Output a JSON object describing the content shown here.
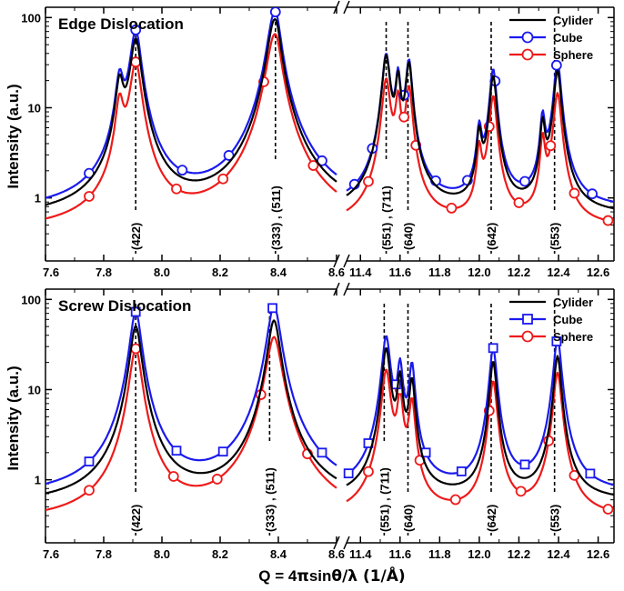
{
  "figure": {
    "ylabel": "Intensity (a.u.)",
    "xlabel_prefix": "Q = 4",
    "xlabel_pi": "π",
    "xlabel_mid": "sin",
    "xlabel_theta": "θ",
    "xlabel_suffix": "/λ (1/Å)"
  },
  "colors": {
    "Cylider": "#000000",
    "Cube": "#1a1aee",
    "Sphere": "#ee1a1a"
  },
  "chart_data": [
    {
      "type": "line",
      "title": "Edge Dislocation",
      "yscale": "log",
      "ylim": [
        0.2,
        130
      ],
      "yticks": [
        1,
        10,
        100
      ],
      "ytick_labels": [
        "1",
        "10",
        "100"
      ],
      "x_segments": [
        {
          "xlim": [
            7.6,
            8.6
          ],
          "ticks": [
            7.6,
            7.8,
            8.0,
            8.2,
            8.4,
            8.6
          ],
          "tick_labels": [
            "7.6",
            "7.8",
            "8.0",
            "8.2",
            "8.4",
            "8.6"
          ]
        },
        {
          "xlim": [
            11.33,
            12.68
          ],
          "ticks": [
            11.4,
            11.6,
            11.8,
            12.0,
            12.2,
            12.4,
            12.6
          ],
          "tick_labels": [
            "11.4",
            "11.6",
            "11.8",
            "12.0",
            "12.2",
            "12.4",
            "12.6"
          ]
        }
      ],
      "peak_labels": [
        {
          "x": 7.91,
          "label": "(422)"
        },
        {
          "x": 8.39,
          "label": "(333) , (511)"
        },
        {
          "x": 11.53,
          "label": "(551) , (711)"
        },
        {
          "x": 11.64,
          "label": "(640)"
        },
        {
          "x": 12.06,
          "label": "(642)"
        },
        {
          "x": 12.38,
          "label": "(553)"
        }
      ],
      "legend": {
        "position": "top-right",
        "entries": [
          "Cylider",
          "Cube",
          "Sphere"
        ]
      },
      "baseline": [
        0.55,
        0.65,
        0.4
      ],
      "series": [
        {
          "name": "Cylider",
          "marker": "none",
          "peaks": [
            [
              7.855,
              0.18,
              0.013
            ],
            [
              7.91,
              0.57,
              0.017
            ],
            [
              8.385,
              0.82,
              0.022
            ],
            [
              8.395,
              0.2,
              0.012
            ],
            [
              11.53,
              0.37,
              0.018
            ],
            [
              11.59,
              0.2,
              0.012
            ],
            [
              11.645,
              0.3,
              0.015
            ],
            [
              12.0,
              0.045,
              0.012
            ],
            [
              12.07,
              0.22,
              0.016
            ],
            [
              12.32,
              0.06,
              0.012
            ],
            [
              12.395,
              0.25,
              0.017
            ]
          ]
        },
        {
          "name": "Cube",
          "marker": "circle",
          "marker_x": [
            7.75,
            7.91,
            8.07,
            8.23,
            8.39,
            8.55,
            11.37,
            11.46,
            11.62,
            11.78,
            11.94,
            12.08,
            12.23,
            12.39,
            12.57
          ],
          "peaks": [
            [
              7.855,
              0.2,
              0.013
            ],
            [
              7.91,
              0.71,
              0.017
            ],
            [
              8.385,
              0.99,
              0.022
            ],
            [
              8.395,
              0.24,
              0.012
            ],
            [
              11.53,
              0.38,
              0.018
            ],
            [
              11.59,
              0.22,
              0.012
            ],
            [
              11.645,
              0.32,
              0.015
            ],
            [
              12.0,
              0.05,
              0.012
            ],
            [
              12.07,
              0.26,
              0.016
            ],
            [
              12.32,
              0.07,
              0.012
            ],
            [
              12.395,
              0.31,
              0.017
            ]
          ]
        },
        {
          "name": "Sphere",
          "marker": "circle",
          "marker_x": [
            7.75,
            7.91,
            8.05,
            8.21,
            8.35,
            8.52,
            11.44,
            11.62,
            11.68,
            11.86,
            12.05,
            12.2,
            12.36,
            12.48,
            12.65
          ],
          "peaks": [
            [
              7.855,
              0.11,
              0.013
            ],
            [
              7.91,
              0.31,
              0.018
            ],
            [
              8.385,
              0.56,
              0.024
            ],
            [
              8.395,
              0.13,
              0.013
            ],
            [
              11.53,
              0.2,
              0.019
            ],
            [
              11.59,
              0.12,
              0.013
            ],
            [
              11.645,
              0.16,
              0.016
            ],
            [
              12.0,
              0.03,
              0.012
            ],
            [
              12.07,
              0.13,
              0.017
            ],
            [
              12.32,
              0.04,
              0.012
            ],
            [
              12.395,
              0.14,
              0.018
            ]
          ]
        }
      ]
    },
    {
      "type": "line",
      "title": "Screw Dislocation",
      "yscale": "log",
      "ylim": [
        0.2,
        130
      ],
      "yticks": [
        1,
        10,
        100
      ],
      "ytick_labels": [
        "1",
        "10",
        "100"
      ],
      "x_segments": [
        {
          "xlim": [
            7.6,
            8.6
          ],
          "ticks": [
            7.6,
            7.8,
            8.0,
            8.2,
            8.4,
            8.6
          ],
          "tick_labels": [
            "7.6",
            "7.8",
            "8.0",
            "8.2",
            "8.4",
            "8.6"
          ]
        },
        {
          "xlim": [
            11.33,
            12.68
          ],
          "ticks": [
            11.4,
            11.6,
            11.8,
            12.0,
            12.2,
            12.4,
            12.6
          ],
          "tick_labels": [
            "11.4",
            "11.6",
            "11.8",
            "12.0",
            "12.2",
            "12.4",
            "12.6"
          ]
        }
      ],
      "peak_labels": [
        {
          "x": 7.91,
          "label": "(422)"
        },
        {
          "x": 8.37,
          "label": "(333) , (511)"
        },
        {
          "x": 11.52,
          "label": "(551) , (711)"
        },
        {
          "x": 11.64,
          "label": "(640)"
        },
        {
          "x": 12.06,
          "label": "(642)"
        },
        {
          "x": 12.38,
          "label": "(553)"
        }
      ],
      "legend": {
        "position": "top-right",
        "entries": [
          "Cylider",
          "Cube",
          "Sphere"
        ]
      },
      "baseline": [
        0.5,
        0.6,
        0.32
      ],
      "series": [
        {
          "name": "Cylider",
          "marker": "none",
          "peaks": [
            [
              7.91,
              0.5,
              0.018
            ],
            [
              8.385,
              0.58,
              0.02
            ],
            [
              11.53,
              0.28,
              0.018
            ],
            [
              11.6,
              0.13,
              0.013
            ],
            [
              11.66,
              0.12,
              0.014
            ],
            [
              12.07,
              0.2,
              0.016
            ],
            [
              12.395,
              0.23,
              0.017
            ]
          ]
        },
        {
          "name": "Cube",
          "marker": "square",
          "marker_x": [
            7.75,
            7.91,
            8.05,
            8.21,
            8.38,
            8.55,
            11.34,
            11.44,
            11.58,
            11.73,
            11.91,
            12.07,
            12.23,
            12.39,
            12.56
          ],
          "peaks": [
            [
              7.91,
              0.72,
              0.018
            ],
            [
              8.385,
              0.84,
              0.021
            ],
            [
              11.53,
              0.38,
              0.019
            ],
            [
              11.6,
              0.18,
              0.013
            ],
            [
              11.66,
              0.18,
              0.014
            ],
            [
              12.07,
              0.28,
              0.017
            ],
            [
              12.395,
              0.36,
              0.018
            ]
          ]
        },
        {
          "name": "Sphere",
          "marker": "circle",
          "marker_x": [
            7.75,
            7.91,
            8.04,
            8.19,
            8.34,
            8.5,
            11.44,
            11.6,
            11.7,
            11.88,
            12.05,
            12.21,
            12.35,
            12.48,
            12.65
          ],
          "peaks": [
            [
              7.91,
              0.28,
              0.019
            ],
            [
              8.385,
              0.38,
              0.024
            ],
            [
              11.53,
              0.16,
              0.02
            ],
            [
              11.6,
              0.08,
              0.014
            ],
            [
              11.66,
              0.07,
              0.015
            ],
            [
              12.07,
              0.12,
              0.018
            ],
            [
              12.395,
              0.15,
              0.019
            ]
          ]
        }
      ]
    }
  ]
}
